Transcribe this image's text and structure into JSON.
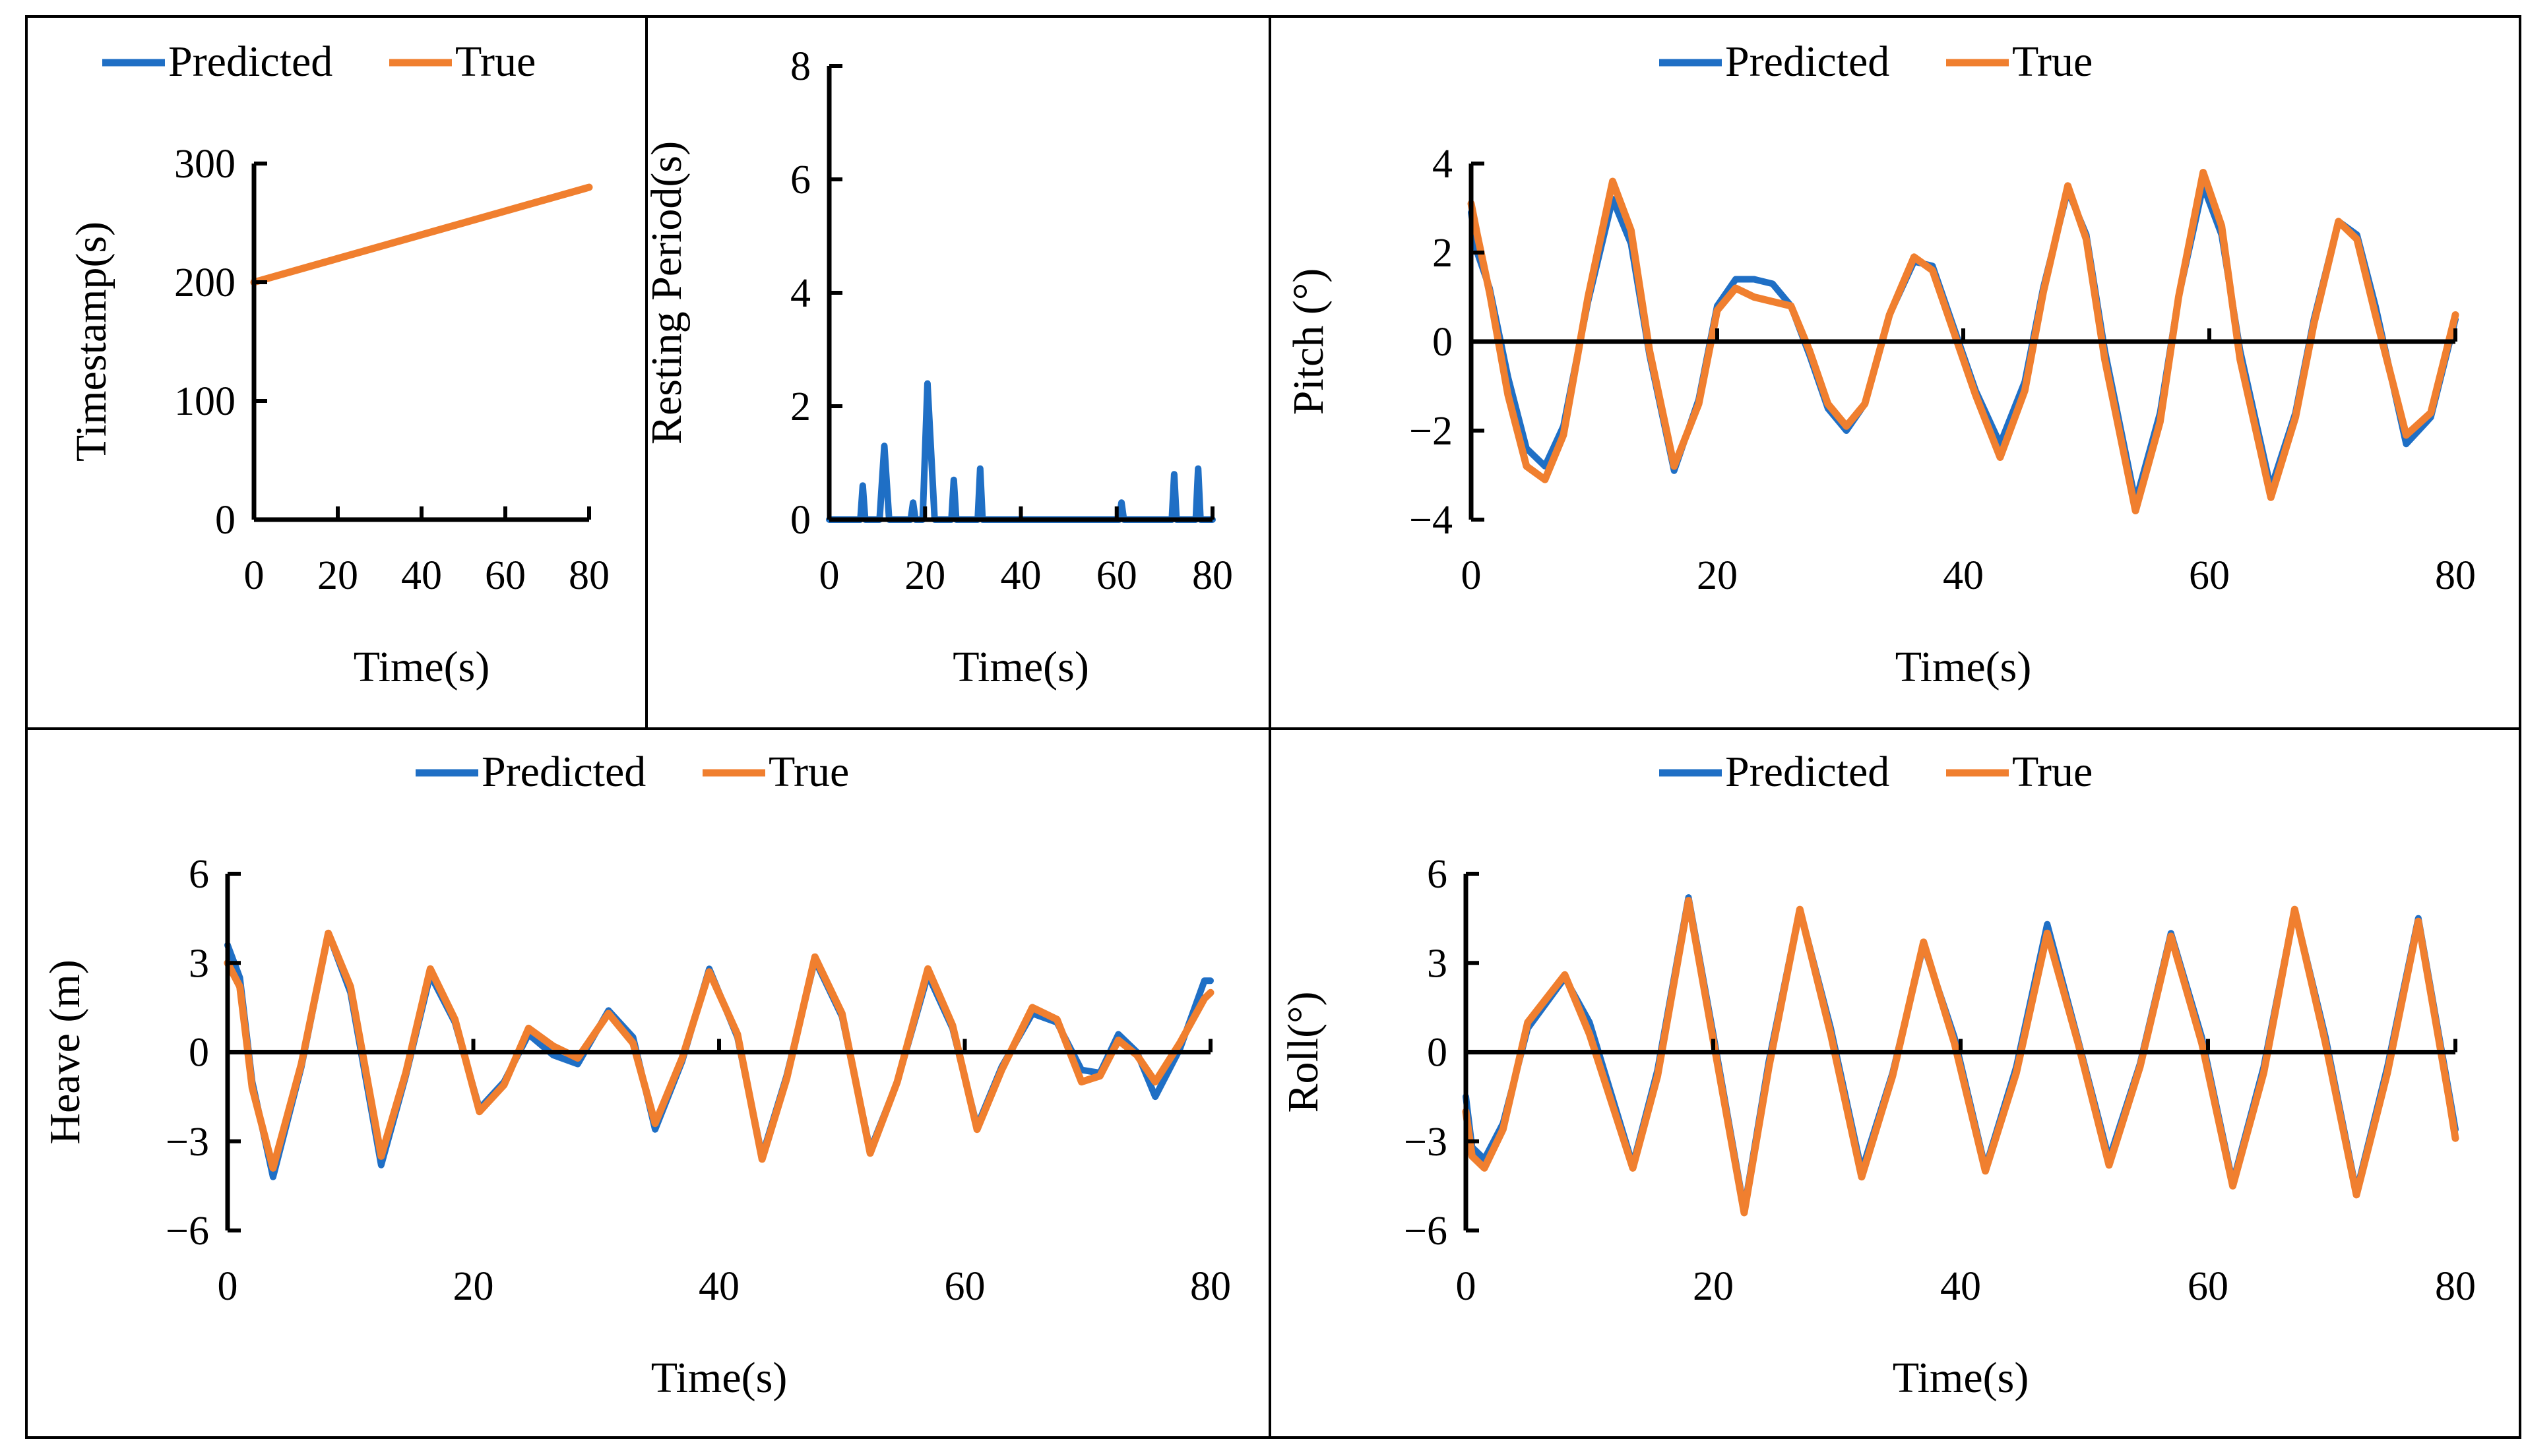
{
  "colors": {
    "predicted": "#1f6fc5",
    "true": "#f07f2f"
  },
  "chart_data": [
    {
      "id": "timestamp",
      "type": "line",
      "title": "",
      "xlabel": "Time(s)",
      "ylabel": "Timestamp(s)",
      "xlim": [
        0,
        80
      ],
      "ylim": [
        0,
        300
      ],
      "xticks": [
        0,
        20,
        40,
        60,
        80
      ],
      "yticks": [
        0,
        100,
        200,
        300
      ],
      "grid": false,
      "legend": "top-left",
      "series": [
        {
          "name": "Predicted",
          "color_key": "predicted",
          "x": [
            0,
            80
          ],
          "y": [
            200,
            280
          ]
        },
        {
          "name": "True",
          "color_key": "true",
          "x": [
            0,
            80
          ],
          "y": [
            200,
            280
          ]
        }
      ]
    },
    {
      "id": "resting",
      "type": "line",
      "title": "",
      "xlabel": "Time(s)",
      "ylabel": "Resting Period(s)",
      "xlim": [
        0,
        80
      ],
      "ylim": [
        0,
        8
      ],
      "xticks": [
        0,
        20,
        40,
        60,
        80
      ],
      "yticks": [
        0,
        2,
        4,
        6,
        8
      ],
      "grid": false,
      "legend": "none",
      "series": [
        {
          "name": "Predicted",
          "color_key": "predicted",
          "x": [
            0,
            6.5,
            7,
            7.5,
            10.5,
            11.5,
            12.5,
            17,
            17.5,
            18,
            19.5,
            20.5,
            22,
            25.5,
            26,
            26.5,
            31,
            31.5,
            32,
            60.5,
            61,
            61.5,
            71.5,
            72,
            72.5,
            76.5,
            77,
            77.5,
            80
          ],
          "y": [
            0,
            0,
            0.6,
            0,
            0,
            1.3,
            0,
            0,
            0.3,
            0,
            0,
            2.4,
            0,
            0,
            0.7,
            0,
            0,
            0.9,
            0,
            0,
            0.3,
            0,
            0,
            0.8,
            0,
            0,
            0.9,
            0,
            0
          ]
        }
      ]
    },
    {
      "id": "pitch",
      "type": "line",
      "title": "",
      "xlabel": "Time(s)",
      "ylabel": "Pitch (°)",
      "xlim": [
        0,
        80
      ],
      "ylim": [
        -4,
        4
      ],
      "xticks": [
        0,
        20,
        40,
        60,
        80
      ],
      "yticks": [
        -4,
        -2,
        0,
        2,
        4
      ],
      "grid": false,
      "legend": "top-center",
      "series": [
        {
          "name": "Predicted",
          "color_key": "predicted",
          "x": [
            0,
            0.5,
            1.5,
            3,
            4.5,
            6,
            7.5,
            9.5,
            11.5,
            13,
            14.5,
            16.5,
            18.5,
            20,
            21.5,
            23,
            24.5,
            26,
            27.5,
            29,
            30.5,
            32,
            34,
            36,
            37.5,
            39,
            41,
            43,
            45,
            46.5,
            48.5,
            50,
            51.5,
            54,
            56,
            57.5,
            59.5,
            61,
            62.5,
            65,
            67,
            68.5,
            70.5,
            72,
            73.5,
            76,
            78,
            80
          ],
          "y": [
            2.9,
            2.0,
            1.2,
            -0.8,
            -2.4,
            -2.8,
            -1.9,
            0.9,
            3.2,
            2.2,
            -0.3,
            -2.9,
            -1.3,
            0.8,
            1.4,
            1.4,
            1.3,
            0.8,
            -0.3,
            -1.5,
            -2.0,
            -1.4,
            0.6,
            1.8,
            1.7,
            0.5,
            -1.1,
            -2.3,
            -0.9,
            1.2,
            3.4,
            2.4,
            -0.2,
            -3.6,
            -1.6,
            1.0,
            3.5,
            2.4,
            -0.2,
            -3.3,
            -1.6,
            0.5,
            2.7,
            2.4,
            0.8,
            -2.3,
            -1.7,
            0.5
          ]
        },
        {
          "name": "True",
          "color_key": "true",
          "x": [
            0,
            0.5,
            1.5,
            3,
            4.5,
            6,
            7.5,
            9.5,
            11.5,
            13,
            14.5,
            16.5,
            18.5,
            20,
            21.5,
            23,
            24.5,
            26,
            27.5,
            29,
            30.5,
            32,
            34,
            36,
            37.5,
            39,
            41,
            43,
            45,
            46.5,
            48.5,
            50,
            51.5,
            54,
            56,
            57.5,
            59.5,
            61,
            62.5,
            65,
            67,
            68.5,
            70.5,
            72,
            73.5,
            76,
            78,
            80
          ],
          "y": [
            3.1,
            2.4,
            1.1,
            -1.2,
            -2.8,
            -3.1,
            -2.1,
            1.0,
            3.6,
            2.5,
            -0.2,
            -2.8,
            -1.4,
            0.7,
            1.2,
            1.0,
            0.9,
            0.8,
            -0.2,
            -1.4,
            -1.9,
            -1.4,
            0.6,
            1.9,
            1.6,
            0.4,
            -1.2,
            -2.6,
            -1.1,
            1.1,
            3.5,
            2.3,
            -0.4,
            -3.8,
            -1.8,
            1.0,
            3.8,
            2.6,
            -0.4,
            -3.5,
            -1.7,
            0.4,
            2.7,
            2.3,
            0.6,
            -2.1,
            -1.6,
            0.6
          ]
        }
      ]
    },
    {
      "id": "heave",
      "type": "line",
      "title": "",
      "xlabel": "Time(s)",
      "ylabel": "Heave (m)",
      "xlim": [
        0,
        80
      ],
      "ylim": [
        -6,
        6
      ],
      "xticks": [
        0,
        20,
        40,
        60,
        80
      ],
      "yticks": [
        -6,
        -3,
        0,
        3,
        6
      ],
      "grid": false,
      "legend": "top-center",
      "series": [
        {
          "name": "Predicted",
          "color_key": "predicted",
          "x": [
            0,
            1,
            2,
            3.7,
            6,
            8.2,
            10,
            12.5,
            14.5,
            16.5,
            18.5,
            20.5,
            22.5,
            24.5,
            26.5,
            28.5,
            31,
            33,
            34.8,
            37,
            39.2,
            41.5,
            43.5,
            45.5,
            47.8,
            50,
            52.3,
            54.5,
            57,
            59,
            61,
            63,
            65.5,
            67.5,
            69.5,
            71,
            72.5,
            74,
            75.5,
            77.5,
            79.5,
            80
          ],
          "y": [
            3.6,
            2.5,
            -1.0,
            -4.2,
            -0.5,
            4.0,
            2.0,
            -3.8,
            -0.8,
            2.6,
            1.0,
            -1.9,
            -1.0,
            0.6,
            -0.1,
            -0.4,
            1.4,
            0.5,
            -2.6,
            -0.3,
            2.8,
            0.5,
            -3.5,
            -0.8,
            3.1,
            1.2,
            -3.3,
            -1.0,
            2.6,
            0.8,
            -2.5,
            -0.5,
            1.3,
            1.0,
            -0.6,
            -0.7,
            0.6,
            0.0,
            -1.5,
            0.1,
            2.4,
            2.4
          ]
        },
        {
          "name": "True",
          "color_key": "true",
          "x": [
            0,
            1,
            2,
            3.7,
            6,
            8.2,
            10,
            12.5,
            14.5,
            16.5,
            18.5,
            20.5,
            22.5,
            24.5,
            26.5,
            28.5,
            31,
            33,
            34.8,
            37,
            39.2,
            41.5,
            43.5,
            45.5,
            47.8,
            50,
            52.3,
            54.5,
            57,
            59,
            61,
            63,
            65.5,
            67.5,
            69.5,
            71,
            72.5,
            74,
            75.5,
            77.5,
            79.5,
            80
          ],
          "y": [
            3.0,
            2.2,
            -1.2,
            -3.9,
            -0.4,
            4.0,
            2.2,
            -3.5,
            -0.7,
            2.8,
            1.1,
            -2.0,
            -1.1,
            0.8,
            0.2,
            -0.2,
            1.3,
            0.3,
            -2.4,
            -0.2,
            2.7,
            0.6,
            -3.6,
            -0.9,
            3.2,
            1.3,
            -3.4,
            -1.0,
            2.8,
            0.9,
            -2.6,
            -0.6,
            1.5,
            1.1,
            -1.0,
            -0.8,
            0.4,
            -0.1,
            -1.0,
            0.3,
            1.8,
            2.0
          ]
        }
      ]
    },
    {
      "id": "roll",
      "type": "line",
      "title": "",
      "xlabel": "Time(s)",
      "ylabel": "Roll(°)",
      "xlim": [
        0,
        80
      ],
      "ylim": [
        -6,
        6
      ],
      "xticks": [
        0,
        20,
        40,
        60,
        80
      ],
      "yticks": [
        -6,
        -3,
        0,
        3,
        6
      ],
      "grid": false,
      "legend": "top-center",
      "series": [
        {
          "name": "Predicted",
          "color_key": "predicted",
          "x": [
            0,
            0.5,
            1.5,
            3,
            5,
            8,
            10,
            13.5,
            15.5,
            18,
            20,
            22.5,
            24.5,
            27,
            29.5,
            32,
            34.5,
            37,
            39.5,
            42,
            44.5,
            47,
            49.5,
            52,
            54.5,
            57,
            59.5,
            62,
            64.5,
            67,
            69.5,
            72,
            74.5,
            77,
            79.5,
            80
          ],
          "y": [
            -1.5,
            -3.2,
            -3.6,
            -2.4,
            0.8,
            2.5,
            1.0,
            -3.8,
            -0.6,
            5.2,
            0.6,
            -5.3,
            -0.3,
            4.8,
            0.8,
            -4.0,
            -0.7,
            3.6,
            0.5,
            -3.9,
            -0.5,
            4.3,
            0.4,
            -3.6,
            -0.4,
            4.0,
            0.5,
            -4.4,
            -0.5,
            4.8,
            0.5,
            -4.7,
            -0.5,
            4.5,
            -1.4,
            -2.6
          ]
        },
        {
          "name": "True",
          "color_key": "true",
          "x": [
            0,
            0.5,
            1.5,
            3,
            5,
            8,
            10,
            13.5,
            15.5,
            18,
            20,
            22.5,
            24.5,
            27,
            29.5,
            32,
            34.5,
            37,
            39.5,
            42,
            44.5,
            47,
            49.5,
            52,
            54.5,
            57,
            59.5,
            62,
            64.5,
            67,
            69.5,
            72,
            74.5,
            77,
            79.5,
            80
          ],
          "y": [
            -2.0,
            -3.5,
            -3.9,
            -2.6,
            1.0,
            2.6,
            0.6,
            -3.9,
            -0.8,
            5.1,
            0.4,
            -5.4,
            -0.5,
            4.8,
            0.6,
            -4.2,
            -0.8,
            3.7,
            0.3,
            -4.0,
            -0.7,
            4.0,
            0.3,
            -3.8,
            -0.5,
            3.9,
            0.3,
            -4.5,
            -0.7,
            4.8,
            0.3,
            -4.8,
            -0.7,
            4.4,
            -1.6,
            -2.9
          ]
        }
      ]
    }
  ]
}
